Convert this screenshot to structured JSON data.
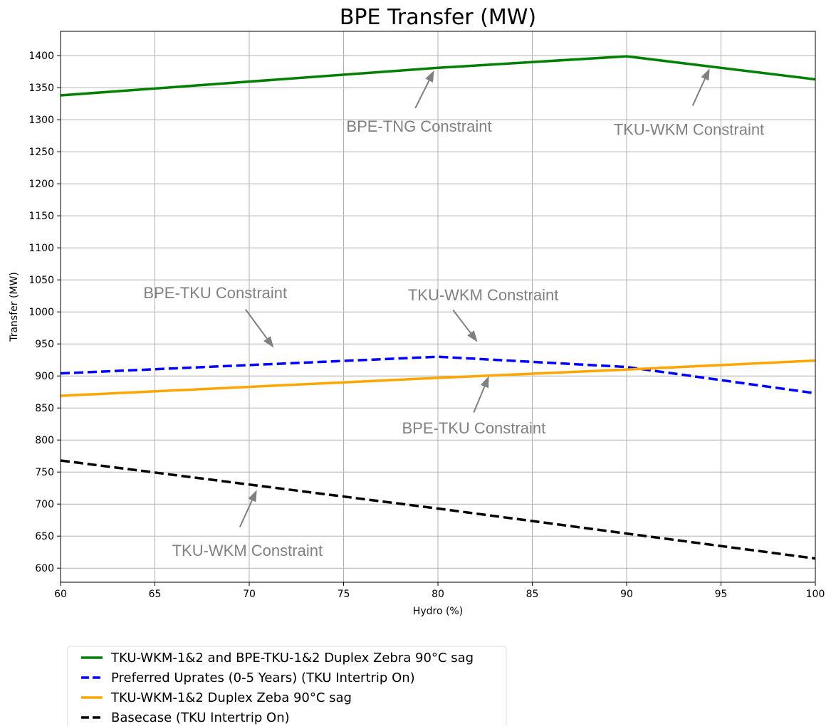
{
  "chart_data": {
    "type": "line",
    "title": "BPE Transfer (MW)",
    "xlabel": "Hydro (%)",
    "ylabel": "Transfer (MW)",
    "xlim": [
      60,
      100
    ],
    "ylim": [
      578,
      1438
    ],
    "xticks": [
      "60",
      "65",
      "70",
      "75",
      "80",
      "85",
      "90",
      "95",
      "100"
    ],
    "yticks": [
      "600",
      "650",
      "700",
      "750",
      "800",
      "850",
      "900",
      "950",
      "1000",
      "1050",
      "1100",
      "1150",
      "1200",
      "1250",
      "1300",
      "1350",
      "1400"
    ],
    "grid": true,
    "legend_position": "below",
    "series": [
      {
        "name": "TKU-WKM-1&2 and BPE-TKU-1&2 Duplex Zebra 90°C sag",
        "color": "#008000",
        "dash": "solid",
        "x": [
          60,
          80,
          90,
          100
        ],
        "y": [
          1338,
          1381,
          1399,
          1363
        ]
      },
      {
        "name": "Preferred Uprates (0-5 Years) (TKU Intertrip On)",
        "color": "#0000ff",
        "dash": "dashed",
        "x": [
          60,
          80,
          90,
          100
        ],
        "y": [
          904,
          930,
          914,
          873
        ]
      },
      {
        "name": "TKU-WKM-1&2 Duplex Zeba 90°C sag",
        "color": "#ffa500",
        "dash": "solid",
        "x": [
          60,
          80,
          90,
          100
        ],
        "y": [
          869,
          897,
          910,
          924
        ]
      },
      {
        "name": "Basecase (TKU Intertrip On)",
        "color": "#000000",
        "dash": "dashed",
        "x": [
          60,
          80,
          90,
          100
        ],
        "y": [
          768,
          693,
          654,
          615
        ]
      }
    ],
    "annotations": [
      {
        "text": "BPE-TNG Constraint",
        "text_xy": [
          79,
          1290
        ],
        "tail_xy": [
          78.8,
          1318
        ],
        "head_xy": [
          79.8,
          1377
        ]
      },
      {
        "text": "TKU-WKM Constraint",
        "text_xy": [
          93.3,
          1285
        ],
        "tail_xy": [
          93.5,
          1322
        ],
        "head_xy": [
          94.4,
          1380
        ]
      },
      {
        "text": "BPE-TKU Constraint",
        "text_xy": [
          68.2,
          1030
        ],
        "tail_xy": [
          69.8,
          1004
        ],
        "head_xy": [
          71.3,
          944
        ]
      },
      {
        "text": "TKU-WKM Constraint",
        "text_xy": [
          82.4,
          1027
        ],
        "tail_xy": [
          80.8,
          1003
        ],
        "head_xy": [
          82.1,
          953
        ]
      },
      {
        "text": "BPE-TKU Constraint",
        "text_xy": [
          81.9,
          819
        ],
        "tail_xy": [
          81.9,
          843
        ],
        "head_xy": [
          82.7,
          900
        ]
      },
      {
        "text": "TKU-WKM Constraint",
        "text_xy": [
          69.9,
          628
        ],
        "tail_xy": [
          69.5,
          664
        ],
        "head_xy": [
          70.4,
          722
        ]
      }
    ]
  }
}
